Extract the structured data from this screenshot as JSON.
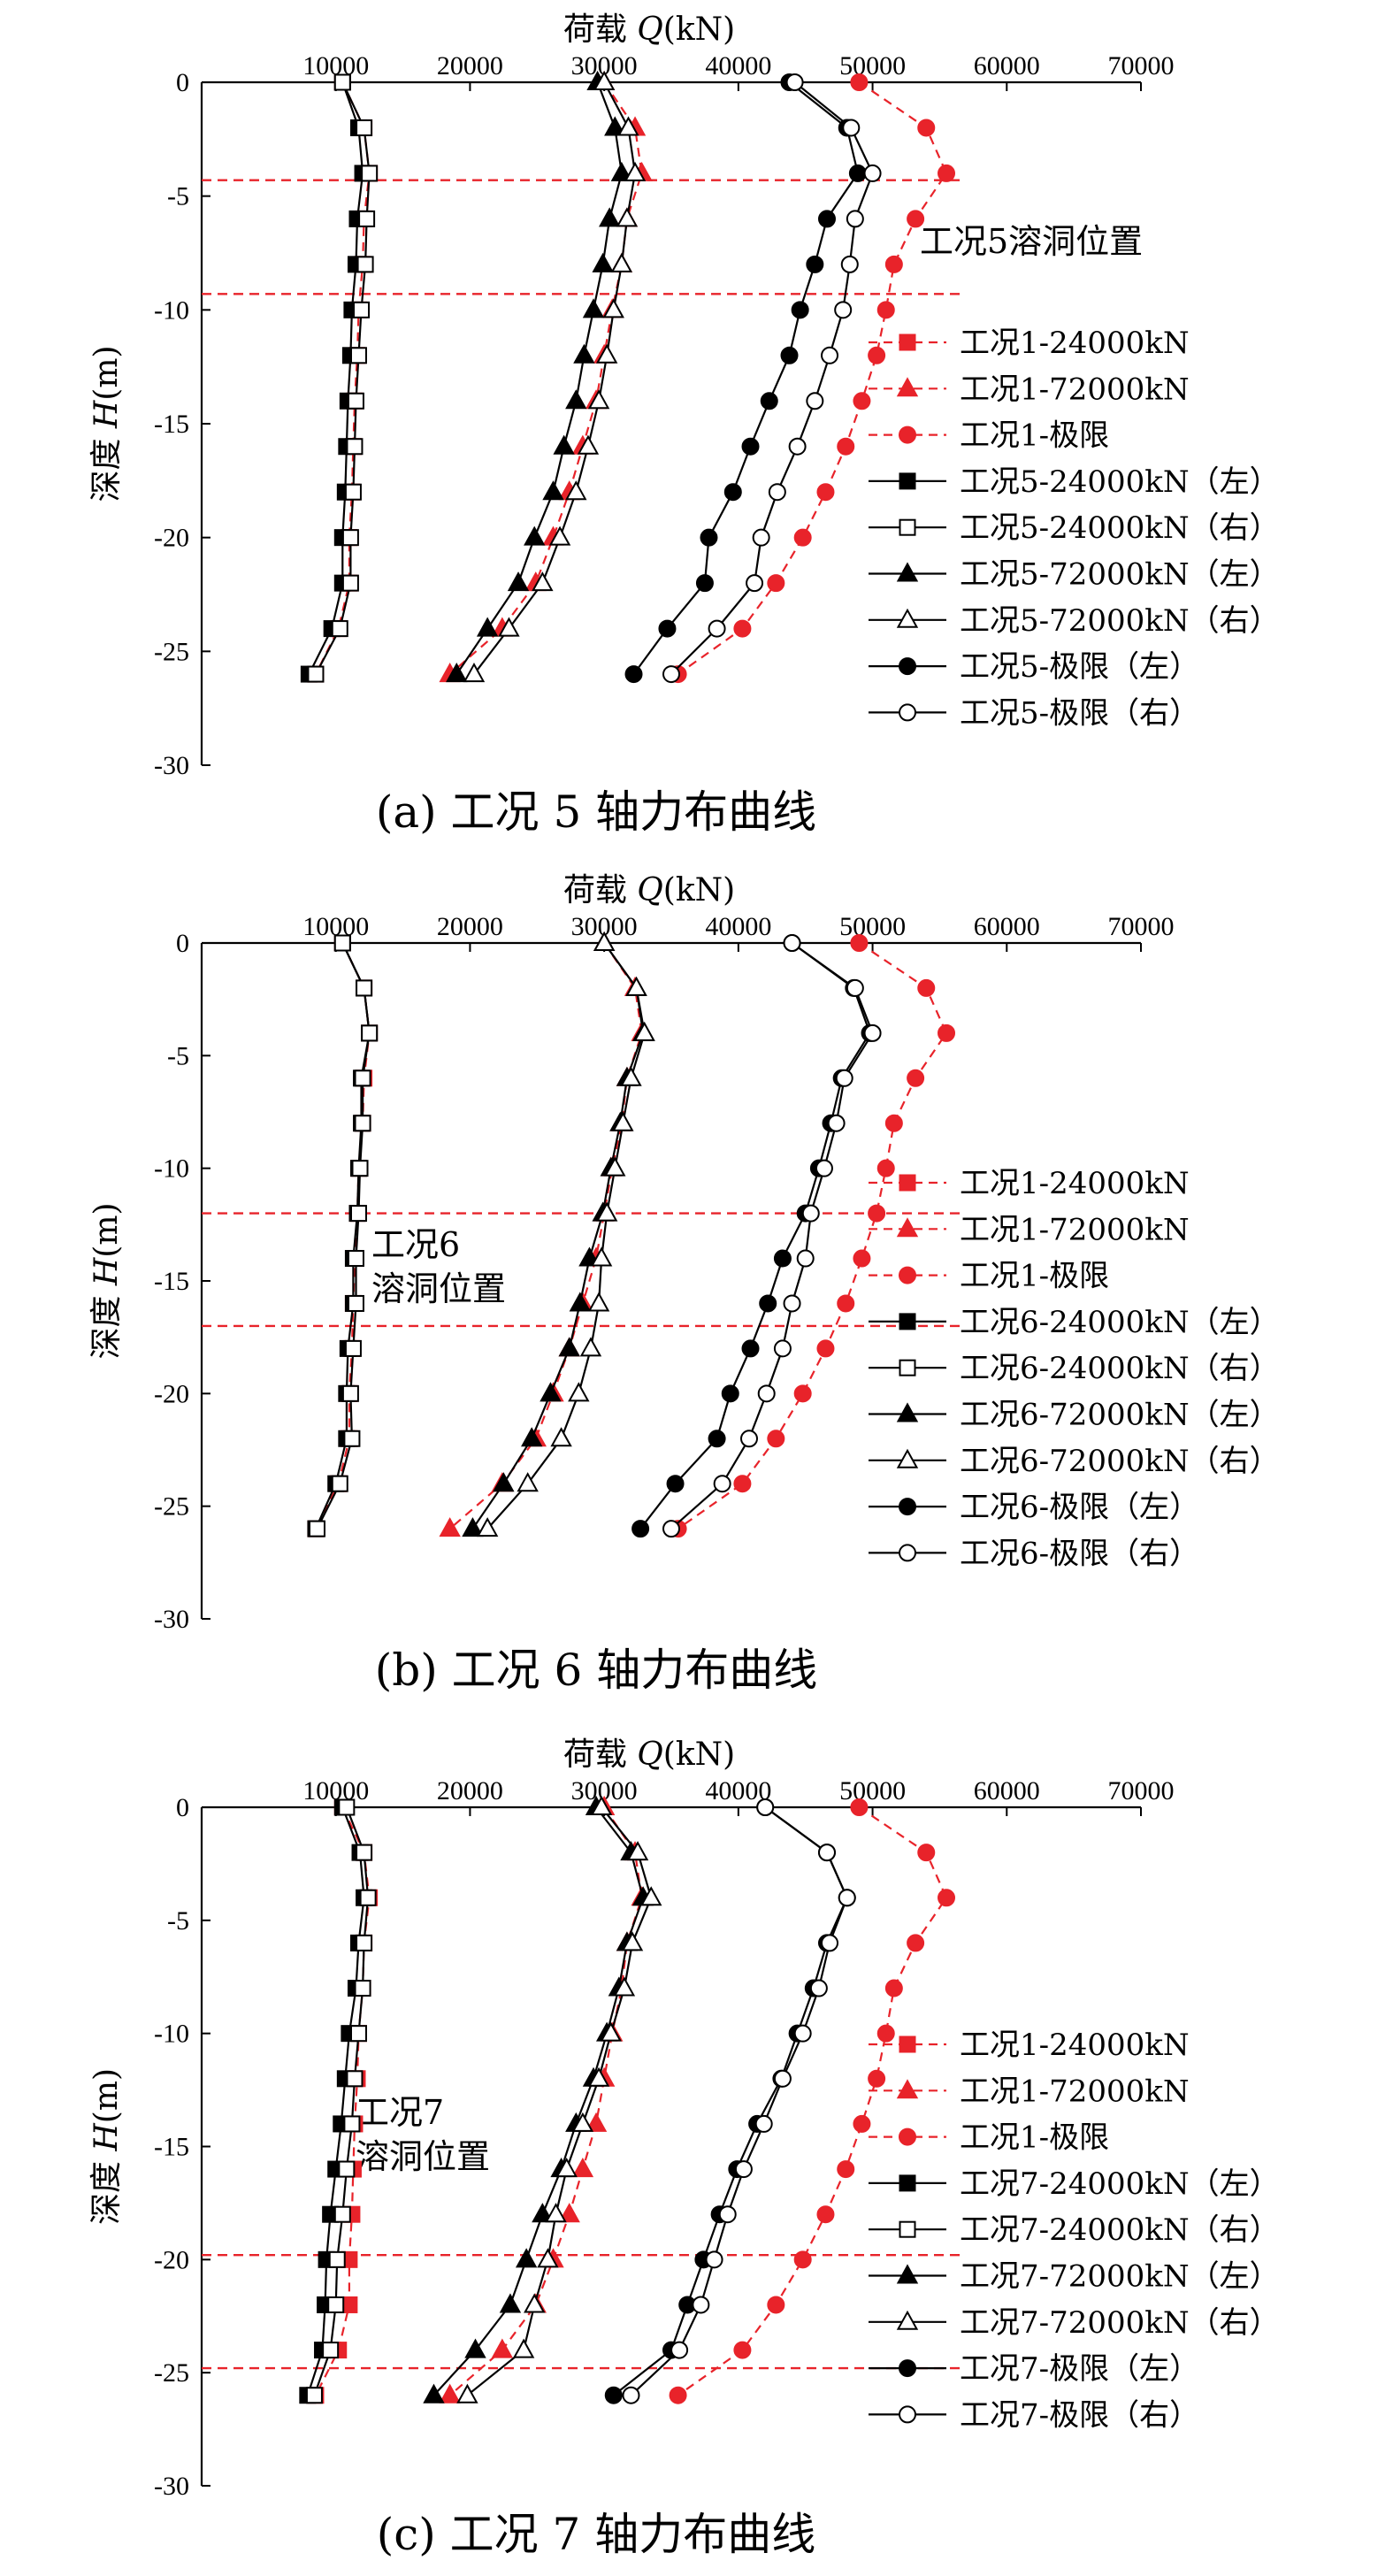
{
  "colors": {
    "red": "#e8232a",
    "black": "#000000"
  },
  "common": {
    "x_title_prefix": "荷载 ",
    "x_title_var": "Q",
    "x_title_unit": "(kN)",
    "y_title_prefix": "深度 ",
    "y_title_var": "H",
    "y_title_unit": "(m)"
  },
  "chart_data": [
    {
      "type": "line",
      "caption": "(a) 工况 5 轴力布曲线",
      "annotation_lines": [
        "工况5溶洞位置"
      ],
      "cavity_depths": [
        -4.3,
        -9.3
      ],
      "xlim": [
        0,
        70000
      ],
      "ylim": [
        -30,
        0
      ],
      "xticks": [
        10000,
        20000,
        30000,
        40000,
        50000,
        60000,
        70000
      ],
      "xtick_labels": [
        "10000",
        "20000",
        "30000",
        "40000",
        "50000",
        "60000",
        "70000"
      ],
      "yticks": [
        0,
        -5,
        -10,
        -15,
        -20,
        -25,
        -30
      ],
      "ytick_labels": [
        "0",
        "-5",
        "-10",
        "-15",
        "-20",
        "-25",
        "-30"
      ],
      "depths": [
        0,
        -2,
        -4,
        -6,
        -8,
        -10,
        -12,
        -14,
        -16,
        -18,
        -20,
        -22,
        -24,
        -26
      ],
      "series": [
        {
          "name": "工况1-24000kN",
          "color": "#e8232a",
          "dashed": true,
          "marker": "square",
          "filled": true,
          "x": [
            10500,
            12100,
            12500,
            12100,
            12000,
            11700,
            11600,
            11400,
            11300,
            11200,
            11000,
            11000,
            10200,
            8500
          ]
        },
        {
          "name": "工况1-72000kN",
          "color": "#e8232a",
          "dashed": true,
          "marker": "triangle",
          "filled": true,
          "x": [
            30000,
            32300,
            32800,
            31700,
            31300,
            30600,
            30000,
            29400,
            28400,
            27400,
            26200,
            24900,
            22400,
            18500
          ]
        },
        {
          "name": "工况1-极限",
          "color": "#e8232a",
          "dashed": true,
          "marker": "circle",
          "filled": true,
          "x": [
            49000,
            54000,
            55500,
            53200,
            51600,
            51000,
            50300,
            49200,
            48000,
            46500,
            44800,
            42800,
            40300,
            35500
          ]
        },
        {
          "name": "工况5-24000kN（左）",
          "color": "#000000",
          "dashed": false,
          "marker": "square",
          "filled": true,
          "x": [
            10500,
            11700,
            12000,
            11600,
            11500,
            11200,
            11100,
            10900,
            10800,
            10700,
            10500,
            10500,
            9700,
            8000
          ]
        },
        {
          "name": "工况5-24000kN（右）",
          "color": "#000000",
          "dashed": false,
          "marker": "square",
          "filled": false,
          "x": [
            10500,
            12100,
            12500,
            12300,
            12200,
            11900,
            11700,
            11500,
            11400,
            11300,
            11100,
            11100,
            10300,
            8500
          ]
        },
        {
          "name": "工况5-72000kN（左）",
          "color": "#000000",
          "dashed": false,
          "marker": "triangle",
          "filled": true,
          "x": [
            29500,
            30800,
            31300,
            30400,
            29900,
            29200,
            28500,
            27900,
            27000,
            26200,
            24800,
            23600,
            21300,
            19000
          ]
        },
        {
          "name": "工况5-72000kN（右）",
          "color": "#000000",
          "dashed": false,
          "marker": "triangle",
          "filled": false,
          "x": [
            30000,
            31800,
            32300,
            31700,
            31300,
            30700,
            30200,
            29600,
            28800,
            27900,
            26700,
            25400,
            22900,
            20300
          ]
        },
        {
          "name": "工况5-极限（左）",
          "color": "#000000",
          "dashed": false,
          "marker": "circle",
          "filled": true,
          "x": [
            43800,
            48100,
            48900,
            46600,
            45700,
            44600,
            43800,
            42300,
            40900,
            39600,
            37800,
            37500,
            34700,
            32200
          ]
        },
        {
          "name": "工况5-极限（右）",
          "color": "#000000",
          "dashed": false,
          "marker": "circle",
          "filled": false,
          "x": [
            44200,
            48400,
            50000,
            48700,
            48300,
            47800,
            46800,
            45700,
            44400,
            42900,
            41700,
            41200,
            38400,
            35000
          ]
        }
      ]
    },
    {
      "type": "line",
      "caption": "(b) 工况 6 轴力布曲线",
      "annotation_lines": [
        "工况6",
        "溶洞位置"
      ],
      "cavity_depths": [
        -12,
        -17
      ],
      "xlim": [
        0,
        70000
      ],
      "ylim": [
        -30,
        0
      ],
      "xticks": [
        10000,
        20000,
        30000,
        40000,
        50000,
        60000,
        70000
      ],
      "xtick_labels": [
        "10000",
        "20000",
        "30000",
        "40000",
        "50000",
        "60000",
        "70000"
      ],
      "yticks": [
        0,
        -5,
        -10,
        -15,
        -20,
        -25,
        -30
      ],
      "ytick_labels": [
        "0",
        "-5",
        "-10",
        "-15",
        "-20",
        "-25",
        "-30"
      ],
      "depths": [
        0,
        -2,
        -4,
        -6,
        -8,
        -10,
        -12,
        -14,
        -16,
        -18,
        -20,
        -22,
        -24,
        -26
      ],
      "series": [
        {
          "name": "工况1-24000kN",
          "color": "#e8232a",
          "dashed": true,
          "marker": "square",
          "filled": true,
          "x": [
            10500,
            12100,
            12500,
            12100,
            12000,
            11700,
            11600,
            11400,
            11300,
            11200,
            11000,
            11000,
            10200,
            8500
          ]
        },
        {
          "name": "工况1-72000kN",
          "color": "#e8232a",
          "dashed": true,
          "marker": "triangle",
          "filled": true,
          "x": [
            30000,
            32300,
            32800,
            31700,
            31300,
            30600,
            30000,
            29400,
            28400,
            27400,
            26200,
            24900,
            22400,
            18500
          ]
        },
        {
          "name": "工况1-极限",
          "color": "#e8232a",
          "dashed": true,
          "marker": "circle",
          "filled": true,
          "x": [
            49000,
            54000,
            55500,
            53200,
            51600,
            51000,
            50300,
            49200,
            48000,
            46500,
            44800,
            42800,
            40300,
            35500
          ]
        },
        {
          "name": "工况6-24000kN（左）",
          "color": "#000000",
          "dashed": false,
          "marker": "square",
          "filled": true,
          "x": [
            10500,
            12100,
            12500,
            11900,
            11900,
            11700,
            11600,
            11300,
            11300,
            10900,
            10800,
            10800,
            10000,
            8500
          ]
        },
        {
          "name": "工况6-24000kN（右）",
          "color": "#000000",
          "dashed": false,
          "marker": "square",
          "filled": false,
          "x": [
            10500,
            12100,
            12500,
            12000,
            12000,
            11800,
            11700,
            11500,
            11500,
            11300,
            11100,
            11200,
            10300,
            8600
          ]
        },
        {
          "name": "工况6-72000kN（左）",
          "color": "#000000",
          "dashed": false,
          "marker": "triangle",
          "filled": true,
          "x": [
            30000,
            32400,
            32900,
            31700,
            31200,
            30500,
            29900,
            28900,
            28200,
            27400,
            26000,
            24600,
            22500,
            20200
          ]
        },
        {
          "name": "工况6-72000kN（右）",
          "color": "#000000",
          "dashed": false,
          "marker": "triangle",
          "filled": false,
          "x": [
            30000,
            32400,
            33000,
            32000,
            31400,
            30800,
            30200,
            29800,
            29600,
            29000,
            28100,
            26800,
            24300,
            21300
          ]
        },
        {
          "name": "工况6-极限（左）",
          "color": "#000000",
          "dashed": false,
          "marker": "circle",
          "filled": true,
          "x": [
            44000,
            48600,
            49800,
            47700,
            46900,
            46000,
            45000,
            43300,
            42200,
            40900,
            39400,
            38400,
            35300,
            32700
          ]
        },
        {
          "name": "工况6-极限（右）",
          "color": "#000000",
          "dashed": false,
          "marker": "circle",
          "filled": false,
          "x": [
            44000,
            48700,
            50000,
            47900,
            47300,
            46400,
            45400,
            45000,
            44000,
            43300,
            42100,
            40800,
            38800,
            35000
          ]
        }
      ]
    },
    {
      "type": "line",
      "caption": "(c) 工况 7 轴力布曲线",
      "annotation_lines": [
        "工况7",
        "溶洞位置"
      ],
      "cavity_depths": [
        -19.8,
        -24.8
      ],
      "xlim": [
        0,
        70000
      ],
      "ylim": [
        -30,
        0
      ],
      "xticks": [
        10000,
        20000,
        30000,
        40000,
        50000,
        60000,
        70000
      ],
      "xtick_labels": [
        "10000",
        "20000",
        "30000",
        "40000",
        "50000",
        "60000",
        "70000"
      ],
      "yticks": [
        0,
        -5,
        -10,
        -15,
        -20,
        -25,
        -30
      ],
      "ytick_labels": [
        "0",
        "-5",
        "-10",
        "-15",
        "-20",
        "-25",
        "-30"
      ],
      "depths": [
        0,
        -2,
        -4,
        -6,
        -8,
        -10,
        -12,
        -14,
        -16,
        -18,
        -20,
        -22,
        -24,
        -26
      ],
      "series": [
        {
          "name": "工况1-24000kN",
          "color": "#e8232a",
          "dashed": true,
          "marker": "square",
          "filled": true,
          "x": [
            10500,
            12100,
            12500,
            12100,
            12000,
            11700,
            11600,
            11400,
            11300,
            11200,
            11000,
            11000,
            10200,
            8500
          ]
        },
        {
          "name": "工况1-72000kN",
          "color": "#e8232a",
          "dashed": true,
          "marker": "triangle",
          "filled": true,
          "x": [
            30000,
            32300,
            32800,
            31700,
            31300,
            30600,
            30000,
            29400,
            28400,
            27400,
            26200,
            24900,
            22400,
            18500
          ]
        },
        {
          "name": "工况1-极限",
          "color": "#e8232a",
          "dashed": true,
          "marker": "circle",
          "filled": true,
          "x": [
            49000,
            54000,
            55500,
            53200,
            51600,
            51000,
            50300,
            49200,
            48000,
            46500,
            44800,
            42800,
            40300,
            35500
          ]
        },
        {
          "name": "工况7-24000kN（左）",
          "color": "#000000",
          "dashed": false,
          "marker": "square",
          "filled": true,
          "x": [
            10500,
            11800,
            12100,
            11700,
            11500,
            11000,
            10700,
            10400,
            10000,
            9600,
            9300,
            9200,
            9000,
            7900
          ]
        },
        {
          "name": "工况7-24000kN（右）",
          "color": "#000000",
          "dashed": false,
          "marker": "square",
          "filled": false,
          "x": [
            10800,
            12100,
            12400,
            12100,
            12000,
            11700,
            11400,
            11200,
            10800,
            10500,
            10100,
            10000,
            9600,
            8400
          ]
        },
        {
          "name": "工况7-72000kN（左）",
          "color": "#000000",
          "dashed": false,
          "marker": "triangle",
          "filled": true,
          "x": [
            29400,
            32000,
            32900,
            31700,
            31100,
            30200,
            29200,
            27900,
            26800,
            25400,
            24200,
            23000,
            20400,
            17300
          ]
        },
        {
          "name": "工况7-72000kN（右）",
          "color": "#000000",
          "dashed": false,
          "marker": "triangle",
          "filled": false,
          "x": [
            29800,
            32500,
            33500,
            32100,
            31500,
            30500,
            29600,
            28400,
            27200,
            26400,
            25800,
            24800,
            24000,
            19800
          ]
        },
        {
          "name": "工况7-极限（左）",
          "color": "#000000",
          "dashed": false,
          "marker": "circle",
          "filled": true,
          "x": [
            42000,
            46600,
            48100,
            46600,
            45600,
            44400,
            43200,
            41400,
            39900,
            38600,
            37400,
            36200,
            35000,
            30700
          ]
        },
        {
          "name": "工况7-极限（右）",
          "color": "#000000",
          "dashed": false,
          "marker": "circle",
          "filled": false,
          "x": [
            42000,
            46600,
            48100,
            46800,
            46000,
            44800,
            43300,
            41900,
            40400,
            39200,
            38200,
            37200,
            35600,
            32000
          ]
        }
      ]
    }
  ]
}
